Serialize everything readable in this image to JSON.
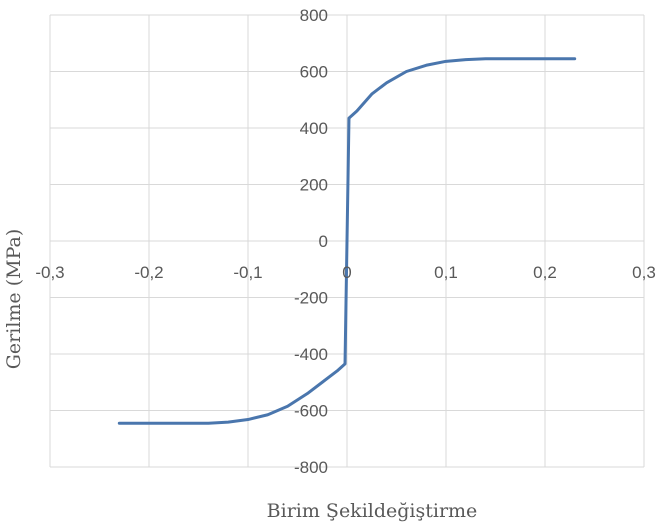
{
  "chart_data": {
    "type": "line",
    "title": "",
    "xlabel": "Birim Şekildeğiştirme",
    "ylabel": "Gerilme (MPa)",
    "xlim": [
      -0.3,
      0.3
    ],
    "ylim": [
      -800,
      800
    ],
    "x_ticks": [
      -0.3,
      -0.2,
      -0.1,
      0,
      0.1,
      0.2,
      0.3
    ],
    "x_tick_labels": [
      "-0,3",
      "-0,2",
      "-0,1",
      "0",
      "0,1",
      "0,2",
      "0,3"
    ],
    "y_ticks": [
      -800,
      -600,
      -400,
      -200,
      0,
      200,
      400,
      600,
      800
    ],
    "y_tick_labels": [
      "-800",
      "-600",
      "-400",
      "-200",
      "0",
      "200",
      "400",
      "600",
      "800"
    ],
    "grid": true,
    "legend": "none",
    "series": [
      {
        "color": "#4a76ad",
        "x": [
          -0.23,
          -0.2,
          -0.17,
          -0.14,
          -0.12,
          -0.1,
          -0.08,
          -0.06,
          -0.04,
          -0.025,
          -0.01,
          -0.002,
          0,
          0.002,
          0.01,
          0.025,
          0.04,
          0.06,
          0.08,
          0.1,
          0.12,
          0.14,
          0.17,
          0.2,
          0.23
        ],
        "y": [
          -645,
          -645,
          -645,
          -645,
          -641,
          -632,
          -615,
          -585,
          -540,
          -500,
          -460,
          -435,
          0,
          435,
          460,
          520,
          560,
          600,
          622,
          636,
          642,
          645,
          645,
          645,
          645
        ]
      }
    ]
  }
}
